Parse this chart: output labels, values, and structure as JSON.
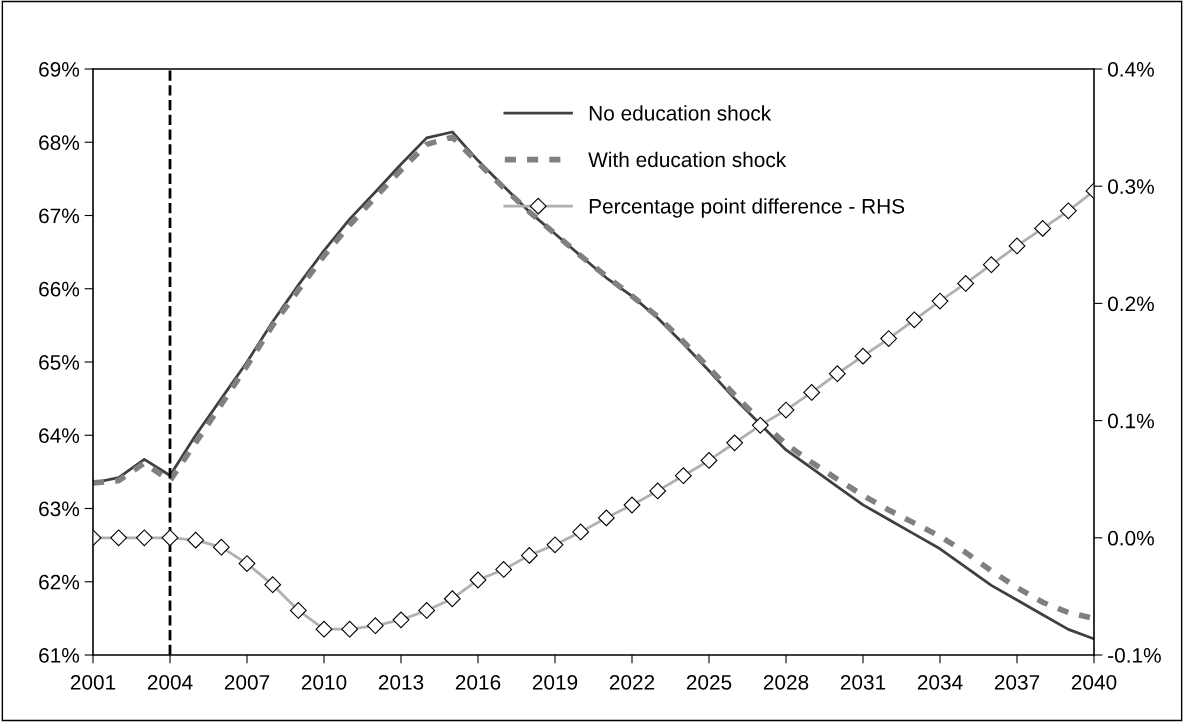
{
  "chart_data": {
    "type": "line",
    "x": [
      2001,
      2002,
      2003,
      2004,
      2005,
      2006,
      2007,
      2008,
      2009,
      2010,
      2011,
      2012,
      2013,
      2014,
      2015,
      2016,
      2017,
      2018,
      2019,
      2020,
      2021,
      2022,
      2023,
      2024,
      2025,
      2026,
      2027,
      2028,
      2029,
      2030,
      2031,
      2032,
      2033,
      2034,
      2035,
      2036,
      2037,
      2038,
      2039,
      2040
    ],
    "series": [
      {
        "name": "No education shock",
        "color": "#404040",
        "line_style": "solid",
        "marker": "none",
        "values": [
          63.35,
          63.42,
          63.67,
          63.45,
          64.0,
          64.5,
          65.0,
          65.55,
          66.05,
          66.52,
          66.95,
          67.32,
          67.7,
          68.06,
          68.14,
          67.75,
          67.4,
          67.05,
          66.75,
          66.45,
          66.15,
          65.9,
          65.6,
          65.25,
          64.88,
          64.5,
          64.15,
          63.8,
          63.55,
          63.3,
          63.05,
          62.85,
          62.65,
          62.45,
          62.2,
          61.95,
          61.75,
          61.55,
          61.35,
          61.22
        ]
      },
      {
        "name": "With education shock",
        "color": "#808080",
        "line_style": "dashed",
        "marker": "none",
        "values": [
          63.35,
          63.38,
          63.62,
          63.38,
          63.9,
          64.42,
          64.95,
          65.5,
          65.98,
          66.45,
          66.87,
          67.25,
          67.62,
          67.97,
          68.07,
          67.72,
          67.38,
          67.05,
          66.75,
          66.45,
          66.17,
          65.9,
          65.62,
          65.28,
          64.92,
          64.55,
          64.2,
          63.88,
          63.63,
          63.4,
          63.18,
          62.98,
          62.8,
          62.62,
          62.4,
          62.15,
          61.92,
          61.72,
          61.58,
          61.5
        ]
      },
      {
        "name": "Percentage point difference - RHS",
        "color": "#b0b0b0",
        "line_style": "solid",
        "marker": "diamond",
        "axis": "y2",
        "values": [
          0.0,
          0.0,
          0.0,
          0.0,
          -0.002,
          -0.008,
          -0.022,
          -0.04,
          -0.062,
          -0.078,
          -0.078,
          -0.075,
          -0.07,
          -0.062,
          -0.052,
          -0.036,
          -0.027,
          -0.015,
          -0.006,
          0.005,
          0.017,
          0.028,
          0.04,
          0.053,
          0.066,
          0.081,
          0.096,
          0.109,
          0.124,
          0.14,
          0.155,
          0.17,
          0.186,
          0.202,
          0.217,
          0.233,
          0.249,
          0.264,
          0.279,
          0.296
        ]
      }
    ],
    "xlim": [
      2001,
      2040
    ],
    "xticks": [
      2001,
      2004,
      2007,
      2010,
      2013,
      2016,
      2019,
      2022,
      2025,
      2028,
      2031,
      2034,
      2037,
      2040
    ],
    "ylim": [
      61,
      69
    ],
    "yticks": [
      {
        "value": 61,
        "label": "61%"
      },
      {
        "value": 62,
        "label": "62%"
      },
      {
        "value": 63,
        "label": "63%"
      },
      {
        "value": 64,
        "label": "64%"
      },
      {
        "value": 65,
        "label": "65%"
      },
      {
        "value": 66,
        "label": "66%"
      },
      {
        "value": 67,
        "label": "67%"
      },
      {
        "value": 68,
        "label": "68%"
      },
      {
        "value": 69,
        "label": "69%"
      }
    ],
    "y2lim": [
      -0.1,
      0.4
    ],
    "y2ticks": [
      {
        "value": -0.1,
        "label": "-0.1%"
      },
      {
        "value": 0.0,
        "label": "0.0%"
      },
      {
        "value": 0.1,
        "label": "0.1%"
      },
      {
        "value": 0.2,
        "label": "0.2%"
      },
      {
        "value": 0.3,
        "label": "0.3%"
      },
      {
        "value": 0.4,
        "label": "0.4%"
      }
    ],
    "ref_lines": [
      {
        "axis": "x",
        "value": 2004,
        "color": "#000000",
        "line_style": "dashed"
      }
    ],
    "grid": false,
    "legend": "top right"
  }
}
